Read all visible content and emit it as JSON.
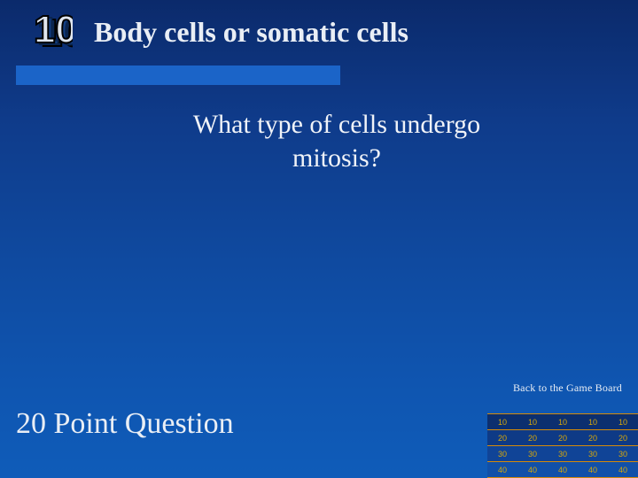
{
  "header": {
    "badge_number": "10",
    "title": "Body cells or somatic cells"
  },
  "divider": {
    "color": "#1b64c8"
  },
  "question": {
    "line1": "What type of cells undergo",
    "line2": "mitosis?"
  },
  "back_link": {
    "label": "Back to the Game Board"
  },
  "footer": {
    "label": "20 Point Question"
  },
  "mini_board": {
    "rows": [
      [
        "10",
        "10",
        "10",
        "10",
        "10"
      ],
      [
        "20",
        "20",
        "20",
        "20",
        "20"
      ],
      [
        "30",
        "30",
        "30",
        "30",
        "30"
      ],
      [
        "40",
        "40",
        "40",
        "40",
        "40"
      ]
    ],
    "cell_text_color": "#d8a80a",
    "cell_border_color": "#d48a0a",
    "row_bg_colors": [
      "#0c2f6f",
      "#0e3a86",
      "#104497",
      "#1150a9"
    ]
  },
  "background_gradient": "linear-gradient(180deg, #0b2a6b 0%, #0f3b8a 25%, #0f4aa0 55%, #0f55b0 80%, #0f5cb9 100%)"
}
